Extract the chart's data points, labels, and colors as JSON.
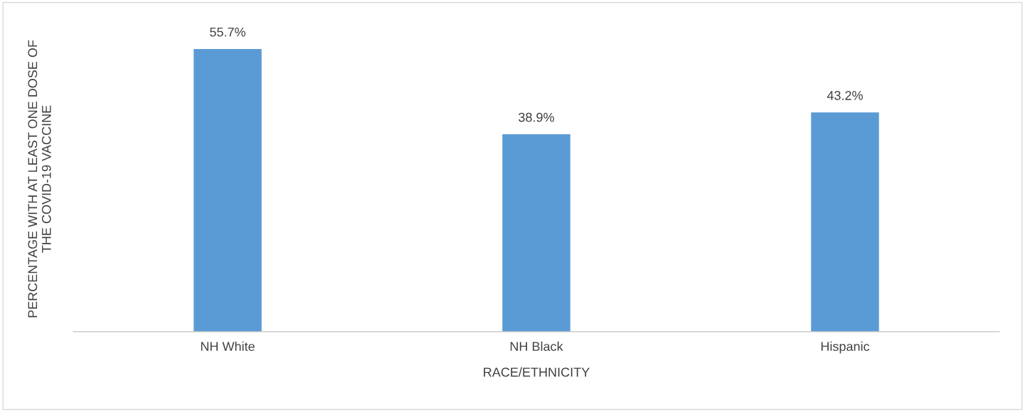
{
  "chart_data": {
    "type": "bar",
    "xlabel": "RACE/ETHNICITY",
    "ylabel": "PERCENTAGE WITH AT LEAST ONE DOSE OF\nTHE COVID-19 VACCINE",
    "categories": [
      "NH White",
      "NH Black",
      "Hispanic"
    ],
    "series": [
      {
        "color": "#5b9bd5",
        "values": [
          55.7,
          38.9,
          43.2
        ],
        "value_labels": [
          "55.7%",
          "38.9%",
          "43.2%"
        ]
      }
    ],
    "tick_labels": "x"
  }
}
